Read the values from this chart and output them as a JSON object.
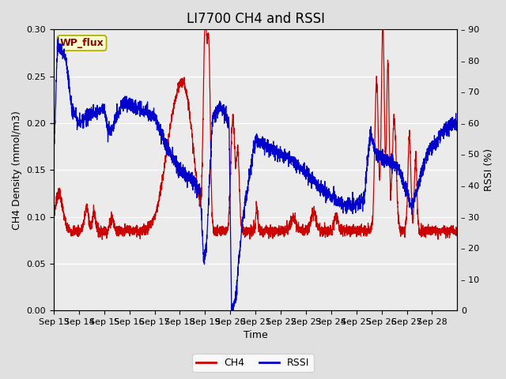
{
  "title": "LI7700 CH4 and RSSI",
  "xlabel": "Time",
  "ylabel_left": "CH4 Density (mmol/m3)",
  "ylabel_right": "RSSI (%)",
  "ylim_left": [
    0.0,
    0.3
  ],
  "ylim_right": [
    0,
    90
  ],
  "yticks_left": [
    0.0,
    0.05,
    0.1,
    0.15,
    0.2,
    0.25,
    0.3
  ],
  "yticks_right": [
    0,
    10,
    20,
    30,
    40,
    50,
    60,
    70,
    80,
    90
  ],
  "xtick_labels": [
    "Sep 13",
    "Sep 14",
    "Sep 15",
    "Sep 16",
    "Sep 17",
    "Sep 18",
    "Sep 19",
    "Sep 20",
    "Sep 21",
    "Sep 22",
    "Sep 23",
    "Sep 24",
    "Sep 25",
    "Sep 26",
    "Sep 27",
    "Sep 28"
  ],
  "ch4_color": "#CC0000",
  "rssi_color": "#0000CC",
  "fig_bg_color": "#E0E0E0",
  "plot_bg_color": "#EBEBEB",
  "grid_color": "#FFFFFF",
  "annotation_text": "WP_flux",
  "annotation_fg": "#8B0000",
  "annotation_bg": "#FFFFCC",
  "annotation_border": "#AAAA00",
  "legend_ch4": "CH4",
  "legend_rssi": "RSSI",
  "title_fontsize": 12,
  "axis_label_fontsize": 9,
  "tick_fontsize": 8,
  "legend_fontsize": 9,
  "linewidth": 0.9
}
